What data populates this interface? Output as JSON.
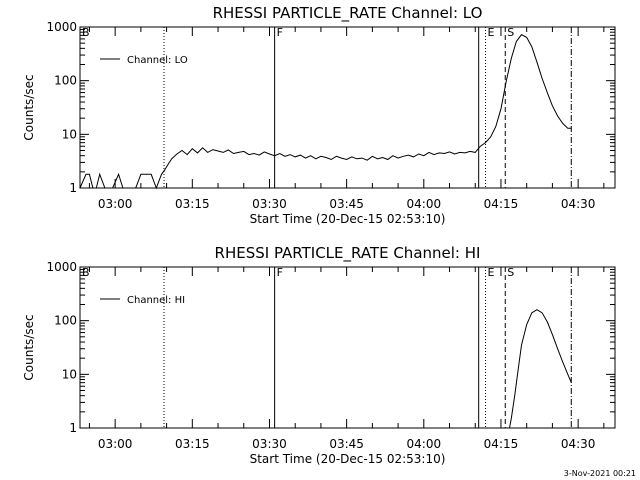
{
  "footer": {
    "timestamp": "3-Nov-2021 00:21"
  },
  "chart_data": [
    {
      "type": "line",
      "title": "RHESSI PARTICLE_RATE Channel: LO",
      "xlabel": "Start Time (20-Dec-15 02:53:10)",
      "ylabel": "Counts/sec",
      "yscale": "log",
      "ylim": [
        1,
        1000
      ],
      "yticks": [
        "1",
        "10",
        "100",
        "1000"
      ],
      "xlim_minutes_after_start": [
        0,
        104
      ],
      "xticks": [
        "03:00",
        "03:15",
        "03:30",
        "03:45",
        "04:00",
        "04:15",
        "04:30"
      ],
      "legend": {
        "placement": "top-left",
        "entries": [
          "Channel: LO"
        ]
      },
      "markers": [
        {
          "label": "B",
          "time": "02:53:10",
          "style": "solid"
        },
        {
          "label": "",
          "time": "03:09:30",
          "style": "dotted"
        },
        {
          "label": "F",
          "time": "03:31:00",
          "style": "solid"
        },
        {
          "label": "",
          "time": "04:10:40",
          "style": "solid"
        },
        {
          "label": "E",
          "time": "04:12:00",
          "style": "dotted"
        },
        {
          "label": "S",
          "time": "04:15:50",
          "style": "dashed"
        },
        {
          "label": "",
          "time": "04:28:40",
          "style": "dash-dot"
        }
      ],
      "series": [
        {
          "name": "Channel: LO",
          "x_time": [
            "02:53:10",
            "02:54:20",
            "02:55:00",
            "02:55:40",
            "02:56:20",
            "02:57:00",
            "02:58:00",
            "02:59:30",
            "03:00:40",
            "03:01:30",
            "03:02:30",
            "03:04:00",
            "03:05:00",
            "03:06:10",
            "03:07:00",
            "03:08:00",
            "03:09:00",
            "03:09:40",
            "03:10:20",
            "03:11:00",
            "03:12:00",
            "03:13:00",
            "03:14:00",
            "03:15:00",
            "03:16:00",
            "03:17:00",
            "03:18:00",
            "03:19:00",
            "03:20:00",
            "03:21:00",
            "03:22:00",
            "03:23:00",
            "03:24:00",
            "03:25:00",
            "03:26:00",
            "03:27:00",
            "03:28:00",
            "03:29:00",
            "03:30:00",
            "03:31:00",
            "03:32:00",
            "03:33:00",
            "03:34:00",
            "03:35:00",
            "03:36:00",
            "03:37:00",
            "03:38:00",
            "03:39:00",
            "03:40:00",
            "03:41:00",
            "03:42:00",
            "03:43:00",
            "03:44:00",
            "03:45:00",
            "03:46:00",
            "03:47:00",
            "03:48:00",
            "03:49:00",
            "03:50:00",
            "03:51:00",
            "03:52:00",
            "03:53:00",
            "03:54:00",
            "03:55:00",
            "03:56:00",
            "03:57:00",
            "03:58:00",
            "03:59:00",
            "04:00:00",
            "04:01:00",
            "04:02:00",
            "04:03:00",
            "04:04:00",
            "04:05:00",
            "04:06:00",
            "04:07:00",
            "04:08:00",
            "04:09:00",
            "04:10:00",
            "04:11:00",
            "04:12:00",
            "04:13:00",
            "04:14:00",
            "04:15:00",
            "04:16:00",
            "04:17:00",
            "04:18:00",
            "04:19:00",
            "04:20:00",
            "04:21:00",
            "04:22:00",
            "04:23:00",
            "04:24:00",
            "04:25:00",
            "04:26:00",
            "04:27:00",
            "04:28:00",
            "04:28:40"
          ],
          "y": [
            1,
            1.8,
            1.8,
            1,
            1,
            1.8,
            1,
            1,
            1.8,
            1,
            1,
            1,
            1.8,
            1.8,
            1.8,
            1,
            1.8,
            2.2,
            2.8,
            3.5,
            4.3,
            5,
            4.2,
            5.4,
            4.5,
            5.6,
            4.6,
            5.2,
            4.9,
            4.6,
            5.1,
            4.4,
            4.6,
            4.8,
            4.2,
            4.4,
            4.1,
            4.7,
            4.3,
            4.0,
            4.4,
            3.9,
            4.2,
            3.8,
            4.1,
            3.6,
            4.0,
            3.5,
            3.9,
            3.7,
            3.4,
            3.9,
            3.6,
            3.4,
            3.8,
            3.5,
            3.6,
            3.3,
            3.9,
            3.5,
            3.7,
            3.4,
            4.0,
            3.6,
            3.9,
            4.1,
            3.8,
            4.3,
            4.0,
            4.6,
            4.2,
            4.5,
            4.4,
            4.7,
            4.3,
            4.6,
            4.5,
            4.8,
            4.6,
            6,
            7,
            9,
            14,
            30,
            95,
            260,
            540,
            720,
            640,
            430,
            220,
            110,
            60,
            34,
            22,
            16,
            13,
            13
          ]
        }
      ]
    },
    {
      "type": "line",
      "title": "RHESSI PARTICLE_RATE Channel: HI",
      "xlabel": "Start Time (20-Dec-15 02:53:10)",
      "ylabel": "Counts/sec",
      "yscale": "log",
      "ylim": [
        1,
        1000
      ],
      "yticks": [
        "1",
        "10",
        "100",
        "1000"
      ],
      "xlim_minutes_after_start": [
        0,
        104
      ],
      "xticks": [
        "03:00",
        "03:15",
        "03:30",
        "03:45",
        "04:00",
        "04:15",
        "04:30"
      ],
      "legend": {
        "placement": "top-left",
        "entries": [
          "Channel: HI"
        ]
      },
      "markers": [
        {
          "label": "B",
          "time": "02:53:10",
          "style": "solid"
        },
        {
          "label": "",
          "time": "03:09:30",
          "style": "dotted"
        },
        {
          "label": "F",
          "time": "03:31:00",
          "style": "solid"
        },
        {
          "label": "",
          "time": "04:10:40",
          "style": "solid"
        },
        {
          "label": "E",
          "time": "04:12:00",
          "style": "dotted"
        },
        {
          "label": "S",
          "time": "04:15:50",
          "style": "dashed"
        },
        {
          "label": "",
          "time": "04:28:40",
          "style": "dash-dot"
        }
      ],
      "series": [
        {
          "name": "Channel: HI",
          "x_time": [
            "04:16:40",
            "04:17:00",
            "04:17:40",
            "04:18:20",
            "04:19:00",
            "04:20:00",
            "04:21:00",
            "04:22:00",
            "04:23:00",
            "04:24:00",
            "04:25:00",
            "04:26:00",
            "04:27:00",
            "04:28:00",
            "04:28:40"
          ],
          "y": [
            1,
            1.5,
            4,
            12,
            35,
            85,
            140,
            160,
            140,
            95,
            55,
            30,
            17,
            10,
            7
          ]
        }
      ]
    }
  ]
}
